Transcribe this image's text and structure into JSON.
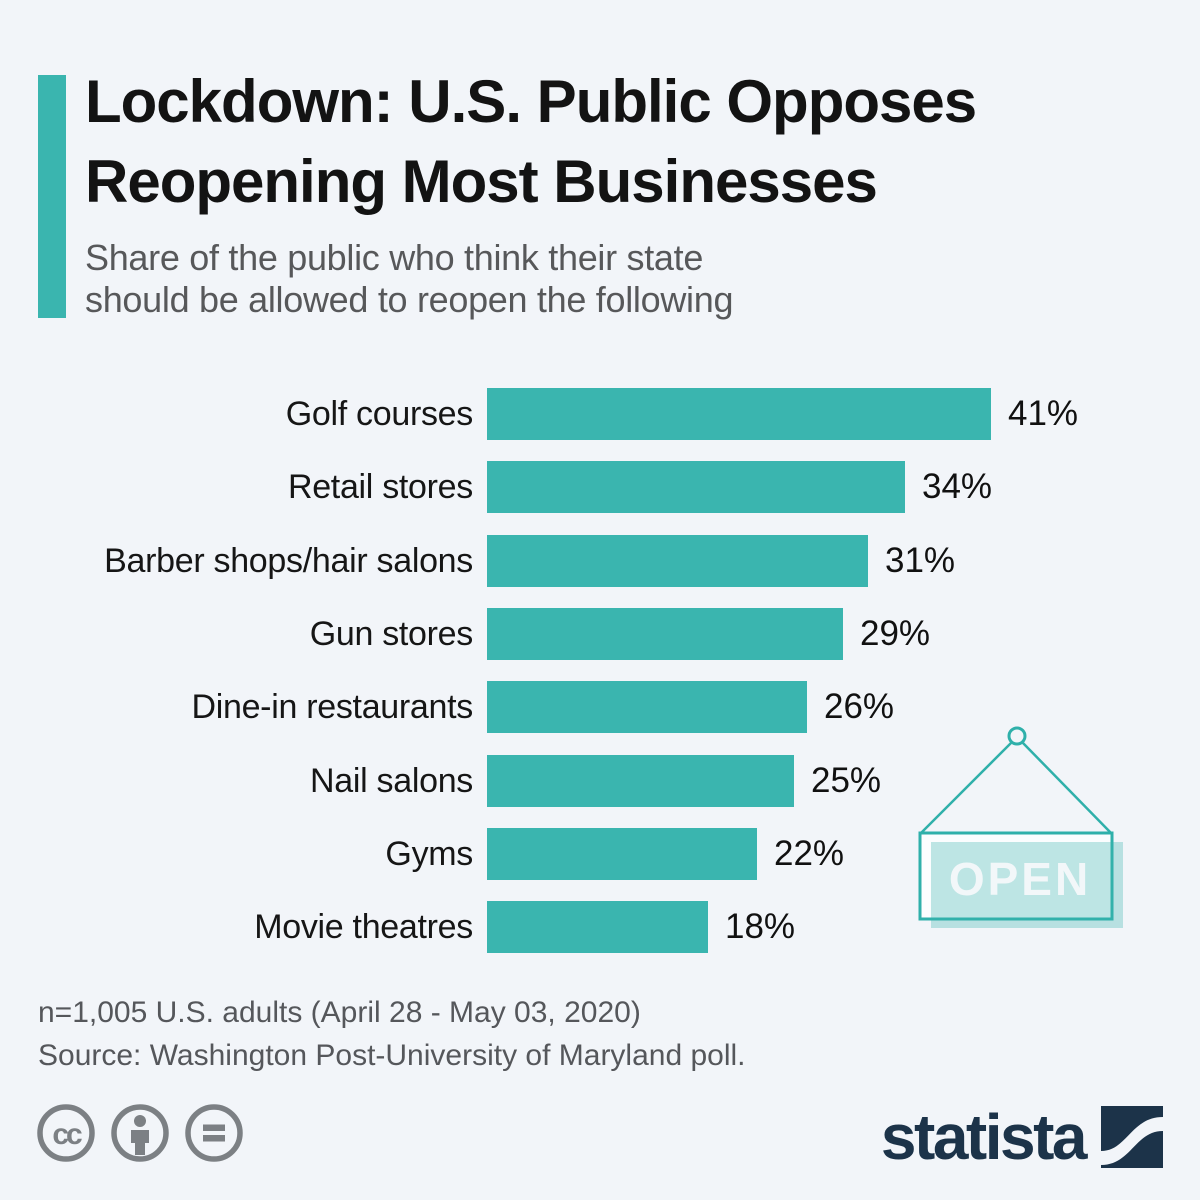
{
  "header": {
    "title_line1": "Lockdown: U.S. Public Opposes",
    "title_line2": "Reopening Most Businesses",
    "subtitle_line1": "Share of the public who think their state",
    "subtitle_line2": "should be allowed to reopen the following"
  },
  "chart_data": {
    "type": "bar",
    "orientation": "horizontal",
    "title": "Lockdown: U.S. Public Opposes Reopening Most Businesses",
    "subtitle": "Share of the public who think their state should be allowed to reopen the following",
    "categories": [
      "Golf courses",
      "Retail stores",
      "Barber shops/hair salons",
      "Gun stores",
      "Dine-in restaurants",
      "Nail salons",
      "Gyms",
      "Movie theatres"
    ],
    "values": [
      41,
      34,
      31,
      29,
      26,
      25,
      22,
      18
    ],
    "value_labels": [
      "41%",
      "34%",
      "31%",
      "29%",
      "26%",
      "25%",
      "22%",
      "18%"
    ],
    "value_suffix": "%",
    "xlim": [
      0,
      41
    ],
    "grid": false,
    "legend": "none",
    "bar_color": "#3ab5af"
  },
  "open_sign": {
    "label": "OPEN"
  },
  "footer": {
    "note": "n=1,005 U.S. adults (April 28 - May 03, 2020)",
    "source": "Source: Washington Post-University of Maryland poll.",
    "brand": "statista",
    "license_icons": [
      "cc-icon",
      "attribution-person-icon",
      "equals-icon"
    ]
  },
  "colors": {
    "background": "#f2f5f9",
    "accent_teal": "#3ab5af",
    "sign_border": "#2fb0aa",
    "sign_fill": "#c5e5e3",
    "text_dark": "#131313",
    "text_gray": "#57585a",
    "icon_gray": "#7c8084",
    "brand_navy": "#1c3349"
  }
}
